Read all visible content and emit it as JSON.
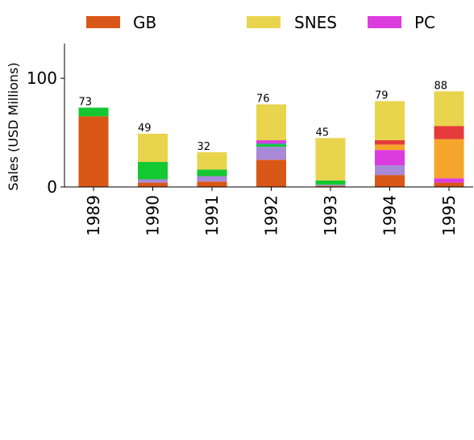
{
  "chart_data": {
    "type": "bar",
    "stacked": true,
    "title": "",
    "xlabel": "",
    "ylabel": "Sales (USD Millions)",
    "ylim": [
      0,
      132
    ],
    "yticks": [
      0,
      100
    ],
    "grid": false,
    "legend_position": "top",
    "categories": [
      "1989",
      "1990",
      "1991",
      "1992",
      "1993",
      "1994",
      "1995"
    ],
    "totals": [
      73,
      49,
      32,
      76,
      45,
      79,
      88
    ],
    "legend": [
      {
        "name": "GB",
        "color": "#d95717"
      },
      {
        "name": "SNES",
        "color": "#e8d44d"
      },
      {
        "name": "PC",
        "color": "#dc3be0"
      }
    ],
    "series": [
      {
        "name": "GB",
        "color": "#d95717",
        "values": [
          65,
          4,
          5,
          25,
          1,
          11,
          4
        ]
      },
      {
        "color": "#a98ad8",
        "values": [
          0,
          3,
          5,
          12,
          1,
          9,
          0
        ]
      },
      {
        "color": "#14c832",
        "values": [
          8,
          16,
          6,
          2,
          4,
          0,
          0
        ]
      },
      {
        "color": "#20a896",
        "values": [
          0,
          0,
          0,
          1,
          0,
          0,
          0
        ]
      },
      {
        "name": "PC",
        "color": "#dc3be0",
        "values": [
          0,
          0,
          0,
          3,
          0,
          14,
          4
        ]
      },
      {
        "color": "#f5a62a",
        "values": [
          0,
          0,
          0,
          0,
          0,
          5,
          36
        ]
      },
      {
        "color": "#e53b3b",
        "values": [
          0,
          0,
          0,
          0,
          0,
          4,
          12
        ]
      },
      {
        "name": "SNES",
        "color": "#e8d44d",
        "values": [
          0,
          26,
          16,
          33,
          39,
          36,
          32
        ]
      }
    ]
  }
}
